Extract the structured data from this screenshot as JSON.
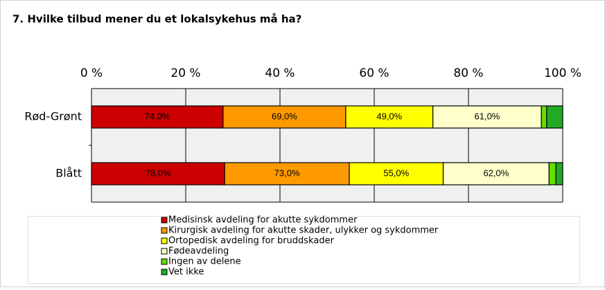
{
  "chart_data": {
    "type": "stacked-bar-100",
    "title": "7. Hvilke tilbud mener du et lokalsykehus må ha?",
    "categories": [
      "Rød-Grønt",
      "Blått"
    ],
    "series": [
      {
        "name": "Medisinsk avdeling for akutte sykdommer",
        "color": "#cc0000",
        "values": [
          74,
          78
        ],
        "value_labels": [
          "74,0%",
          "78,0%"
        ]
      },
      {
        "name": "Kirurgisk avdeling for akutte skader, ulykker og sykdommer",
        "color": "#ff9900",
        "values": [
          69,
          73
        ],
        "value_labels": [
          "69,0%",
          "73,0%"
        ]
      },
      {
        "name": "Ortopedisk avdeling for bruddskader",
        "color": "#ffff00",
        "values": [
          49,
          55
        ],
        "value_labels": [
          "49,0%",
          "55,0%"
        ]
      },
      {
        "name": "Fødeavdeling",
        "color": "#ffffcc",
        "values": [
          61,
          62
        ],
        "value_labels": [
          "61,0%",
          "62,0%"
        ]
      },
      {
        "name": "Ingen av delene",
        "color": "#66dd00",
        "values": [
          3,
          4
        ]
      },
      {
        "name": "Vet ikke",
        "color": "#22aa22",
        "values": [
          9,
          4
        ]
      }
    ],
    "xlim": [
      0,
      100
    ],
    "xticks": [
      {
        "value": 0,
        "label": "0 %"
      },
      {
        "value": 20,
        "label": "20 %"
      },
      {
        "value": 40,
        "label": "40 %"
      },
      {
        "value": 60,
        "label": "60 %"
      },
      {
        "value": 80,
        "label": "80 %"
      },
      {
        "value": 100,
        "label": "100 %"
      }
    ],
    "grid": true
  }
}
